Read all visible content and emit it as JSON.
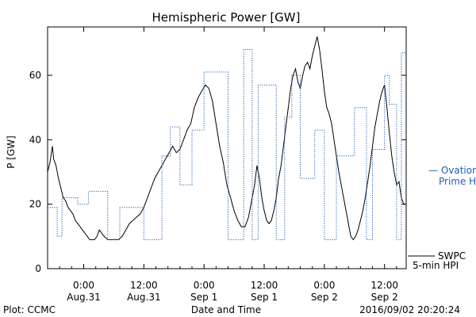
{
  "chart_data": {
    "type": "line",
    "title": "Hemispheric Power [GW]",
    "xlabel": "Date and Time",
    "ylabel": "P [GW]",
    "ylim": [
      0,
      75
    ],
    "yticks": [
      0,
      20,
      40,
      60
    ],
    "xlim": [
      -3,
      26.8
    ],
    "xticks": [
      {
        "x": 0,
        "line1": "0:00",
        "line2": "Aug.31"
      },
      {
        "x": 5,
        "line1": "12:00",
        "line2": "Aug.31"
      },
      {
        "x": 10,
        "line1": "0:00",
        "line2": "Sep 1"
      },
      {
        "x": 15,
        "line1": "12:00",
        "line2": "Sep 1"
      },
      {
        "x": 20,
        "line1": "0:00",
        "line2": "Sep 2"
      },
      {
        "x": 25,
        "line1": "12:00",
        "line2": "Sep 2"
      }
    ],
    "grid": false,
    "series": [
      {
        "name": "SWPC 5-min HPI",
        "color": "#000000",
        "style": "solid",
        "x": [
          -3.0,
          -2.8,
          -2.6,
          -2.5,
          -2.3,
          -2.1,
          -1.9,
          -1.7,
          -1.5,
          -1.3,
          -1.1,
          -0.9,
          -0.7,
          -0.5,
          -0.3,
          -0.1,
          0.1,
          0.3,
          0.5,
          0.7,
          0.9,
          1.1,
          1.3,
          1.5,
          1.7,
          2.0,
          2.3,
          2.6,
          2.9,
          3.2,
          3.5,
          3.8,
          4.1,
          4.4,
          4.7,
          5.0,
          5.3,
          5.6,
          5.9,
          6.2,
          6.5,
          6.8,
          7.1,
          7.4,
          7.7,
          8.0,
          8.3,
          8.6,
          8.9,
          9.2,
          9.5,
          9.8,
          10.1,
          10.4,
          10.7,
          11.0,
          11.3,
          11.6,
          11.9,
          12.2,
          12.5,
          12.8,
          13.1,
          13.4,
          13.7,
          14.0,
          14.2,
          14.4,
          14.6,
          14.8,
          15.0,
          15.2,
          15.4,
          15.6,
          15.8,
          16.0,
          16.2,
          16.4,
          16.6,
          16.8,
          17.0,
          17.2,
          17.4,
          17.6,
          17.8,
          18.0,
          18.2,
          18.4,
          18.6,
          18.8,
          19.0,
          19.2,
          19.4,
          19.6,
          19.8,
          20.0,
          20.2,
          20.4,
          20.6,
          20.8,
          21.0,
          21.2,
          21.4,
          21.6,
          21.8,
          22.0,
          22.2,
          22.4,
          22.6,
          22.8,
          23.0,
          23.2,
          23.4,
          23.6,
          23.8,
          24.0,
          24.2,
          24.4,
          24.6,
          24.8,
          25.0,
          25.2,
          25.4,
          25.6,
          25.8,
          26.0,
          26.2,
          26.4,
          26.6,
          26.8
        ],
        "y": [
          30,
          33,
          38,
          34,
          32,
          28,
          25,
          22,
          21,
          19,
          18,
          17,
          15,
          14,
          13,
          12,
          11,
          10,
          9,
          9,
          9,
          10,
          12,
          11,
          10,
          9,
          9,
          9,
          9,
          10,
          12,
          14,
          15,
          16,
          17,
          19,
          22,
          25,
          28,
          30,
          32,
          34,
          36,
          38,
          36,
          37,
          40,
          43,
          45,
          50,
          53,
          55,
          57,
          56,
          52,
          45,
          38,
          33,
          26,
          22,
          18,
          15,
          13,
          13,
          16,
          22,
          26,
          32,
          28,
          22,
          18,
          15,
          14,
          15,
          18,
          22,
          28,
          32,
          38,
          44,
          50,
          56,
          60,
          62,
          58,
          56,
          60,
          63,
          64,
          62,
          66,
          69,
          72,
          68,
          62,
          55,
          50,
          48,
          45,
          40,
          35,
          30,
          26,
          22,
          18,
          14,
          10,
          9,
          10,
          12,
          15,
          18,
          22,
          27,
          32,
          38,
          44,
          48,
          52,
          55,
          57,
          50,
          42,
          35,
          30,
          26,
          27,
          22,
          20,
          20
        ]
      },
      {
        "name": "Ovation Prime HPI",
        "color": "#1f5fb0",
        "style": "dotted",
        "x": [
          -3.0,
          -2.2,
          -2.2,
          -1.8,
          -1.8,
          -0.5,
          -0.5,
          0.4,
          0.4,
          2.0,
          2.0,
          3.0,
          3.0,
          5.0,
          5.0,
          6.5,
          6.5,
          7.2,
          7.2,
          8.0,
          8.0,
          9.0,
          9.0,
          10.0,
          10.0,
          12.0,
          12.0,
          13.3,
          13.3,
          14.0,
          14.0,
          14.5,
          14.5,
          16.0,
          16.0,
          16.7,
          16.7,
          17.3,
          17.3,
          18.0,
          18.0,
          19.2,
          19.2,
          20.0,
          20.0,
          21.0,
          21.0,
          22.5,
          22.5,
          23.5,
          23.5,
          24.0,
          24.0,
          25.0,
          25.0,
          25.4,
          25.4,
          26.0,
          26.0,
          26.4,
          26.4,
          26.8
        ],
        "y": [
          19,
          19,
          10,
          10,
          22,
          22,
          20,
          20,
          24,
          24,
          9,
          9,
          19,
          19,
          9,
          9,
          35,
          35,
          44,
          44,
          26,
          26,
          43,
          43,
          61,
          61,
          9,
          9,
          68,
          68,
          9,
          9,
          57,
          57,
          9,
          9,
          47,
          47,
          60,
          60,
          28,
          28,
          43,
          43,
          9,
          9,
          35,
          35,
          50,
          50,
          9,
          9,
          37,
          37,
          60,
          60,
          51,
          51,
          9,
          9,
          67,
          67
        ]
      }
    ],
    "legend": {
      "placement": "right",
      "ovation": {
        "line1": "— Ovation",
        "line2": "Prime HPI"
      },
      "swpc": {
        "line1": "SWPC",
        "line2": "5-min HPI"
      }
    },
    "footer": {
      "plot_credit": "Plot: CCMC",
      "timestamp": "2016/09/02 20:20:24"
    }
  }
}
